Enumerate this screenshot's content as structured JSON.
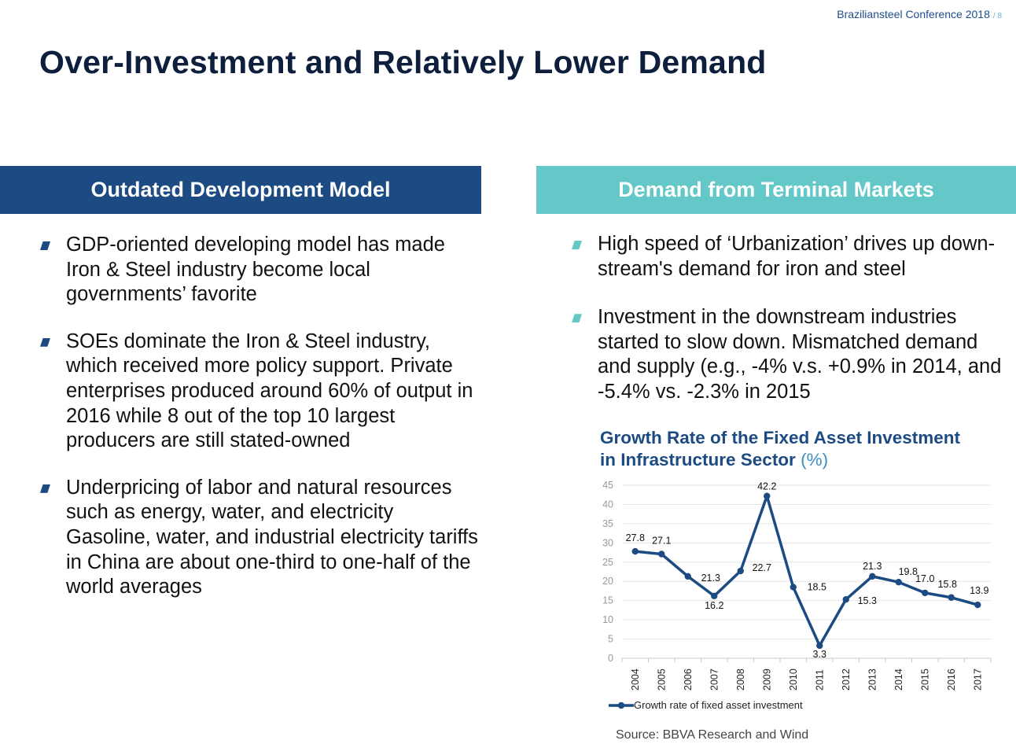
{
  "header": {
    "conference": "Braziliansteel Conference 2018",
    "page": "/ 8"
  },
  "title": "Over-Investment and Relatively Lower Demand",
  "left": {
    "heading": "Outdated Development Model",
    "bullets": [
      "GDP-oriented developing model has made Iron & Steel industry become local governments’ favorite",
      "SOEs dominate the Iron & Steel industry, which received more policy support. Private enterprises produced around 60% of output in 2016 while 8 out of the top 10 largest producers are still stated-owned",
      "Underpricing of labor and natural resources such as energy, water, and electricity Gasoline, water, and industrial electricity tariffs in China are about one-third to one-half of the world averages"
    ]
  },
  "right": {
    "heading": "Demand from Terminal Markets",
    "bullets": [
      "High speed of ‘Urbanization’ drives up down-stream's demand for iron and steel",
      "Investment in the downstream industries started to slow down. Mismatched demand and supply  (e.g., -4% v.s. +0.9% in 2014, and -5.4% vs. -2.3% in 2015"
    ]
  },
  "chart_data": {
    "type": "line",
    "title": "Growth Rate of the Fixed Asset Investment in Infrastructure Sector",
    "title_unit": "(%)",
    "categories": [
      "2004",
      "2005",
      "2006",
      "2007",
      "2008",
      "2009",
      "2010",
      "2011",
      "2012",
      "2013",
      "2014",
      "2015",
      "2016",
      "2017"
    ],
    "series": [
      {
        "name": "Growth rate of fixed asset investment",
        "values": [
          27.8,
          27.1,
          21.3,
          16.2,
          22.7,
          42.2,
          18.5,
          3.3,
          15.3,
          21.3,
          19.8,
          17.0,
          15.8,
          13.9
        ],
        "labels": [
          "27.8",
          "27.1",
          "21.3",
          "16.2",
          "22.7",
          "42.2",
          "18.5",
          "3.3",
          "15.3",
          "21.3",
          "19.8",
          "17.0",
          "15.8",
          "13.9"
        ]
      }
    ],
    "ylim": [
      0,
      45
    ],
    "yticks": [
      0,
      5,
      10,
      15,
      20,
      25,
      30,
      35,
      40,
      45
    ],
    "grid": true,
    "legend": "bottom-left",
    "xlabel": "",
    "ylabel": "",
    "color": "#1c4a82"
  },
  "source": "Source: BBVA Research and Wind"
}
